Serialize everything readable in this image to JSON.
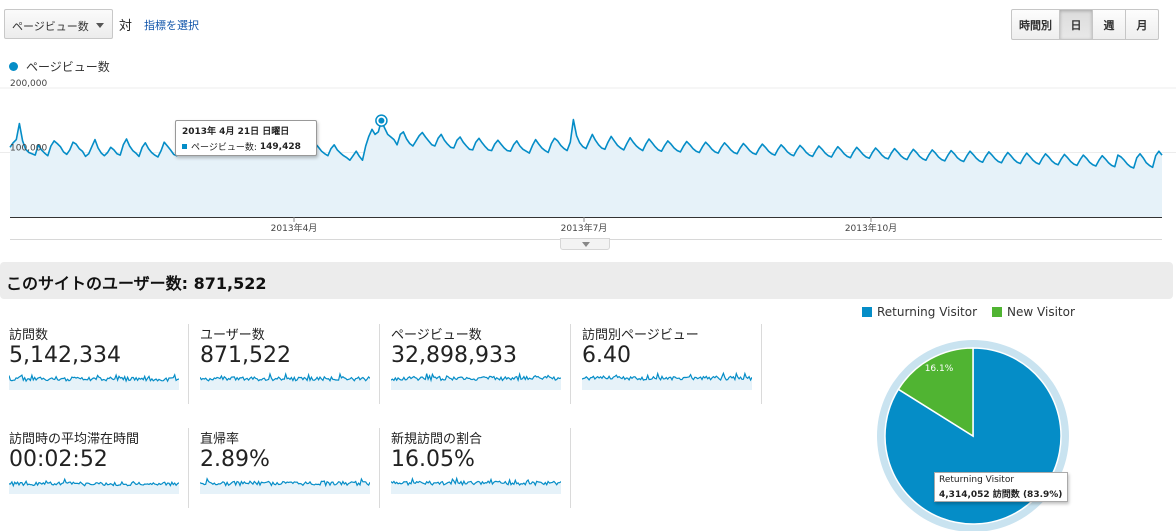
{
  "controls": {
    "metric_selector": "ページビュー数",
    "vs_label": "対",
    "select_metric_link": "指標を選択",
    "periods": [
      {
        "label": "時間別",
        "active": false
      },
      {
        "label": "日",
        "active": true
      },
      {
        "label": "週",
        "active": false
      },
      {
        "label": "月",
        "active": false
      }
    ]
  },
  "chart_legend": "ページビュー数",
  "chart_data": {
    "type": "area",
    "series": [
      {
        "name": "ページビュー数",
        "color": "#058dc7",
        "values": [
          108000,
          115000,
          120000,
          145000,
          118000,
          105000,
          100000,
          98000,
          96000,
          112000,
          104000,
          99000,
          95000,
          110000,
          118000,
          114000,
          109000,
          101000,
          97000,
          104000,
          116000,
          113000,
          106000,
          102000,
          94000,
          98000,
          109000,
          120000,
          107000,
          99000,
          95000,
          100000,
          108000,
          104000,
          98000,
          96000,
          112000,
          121000,
          110000,
          103000,
          99000,
          94000,
          108000,
          115000,
          106000,
          100000,
          96000,
          93000,
          103000,
          116000,
          110000,
          104000,
          97000,
          95000,
          109000,
          114000,
          106000,
          101000,
          96000,
          98000,
          118000,
          124000,
          112000,
          106000,
          101000,
          97000,
          108000,
          117000,
          112000,
          105000,
          99000,
          98000,
          112000,
          130000,
          118000,
          109000,
          104000,
          100000,
          112000,
          123000,
          114000,
          106000,
          102000,
          99000,
          110000,
          118000,
          113000,
          106000,
          101000,
          96000,
          108000,
          116000,
          110000,
          103000,
          99000,
          97000,
          105000,
          114000,
          108000,
          102000,
          98000,
          95000,
          106000,
          112000,
          104000,
          99000,
          95000,
          92000,
          88000,
          95000,
          102000,
          94000,
          88000,
          110000,
          125000,
          136000,
          128000,
          132000,
          149428,
          138000,
          128000,
          124000,
          120000,
          112000,
          128000,
          132000,
          121000,
          114000,
          110000,
          118000,
          126000,
          131000,
          124000,
          118000,
          112000,
          110000,
          122000,
          128000,
          119000,
          113000,
          108000,
          107000,
          119000,
          124000,
          116000,
          110000,
          105000,
          104000,
          116000,
          122000,
          115000,
          109000,
          104000,
          103000,
          113000,
          119000,
          113000,
          107000,
          103000,
          102000,
          112000,
          118000,
          110000,
          105000,
          102000,
          99000,
          111000,
          120000,
          113000,
          107000,
          103000,
          100000,
          114000,
          122000,
          118000,
          111000,
          106000,
          103000,
          116000,
          151000,
          126000,
          115000,
          109000,
          106000,
          117000,
          128000,
          119000,
          112000,
          107000,
          105000,
          116000,
          125000,
          118000,
          111000,
          107000,
          104000,
          114000,
          123000,
          116000,
          110000,
          106000,
          103000,
          113000,
          121000,
          115000,
          109000,
          104000,
          102000,
          111000,
          118000,
          113000,
          107000,
          103000,
          101000,
          110000,
          117000,
          112000,
          106000,
          102000,
          100000,
          109000,
          116000,
          111000,
          105000,
          101000,
          99000,
          108000,
          115000,
          110000,
          104000,
          100000,
          98000,
          107000,
          114000,
          109000,
          103000,
          99000,
          97000,
          106000,
          113000,
          108000,
          102000,
          98000,
          96000,
          105000,
          112000,
          107000,
          101000,
          97000,
          95000,
          104000,
          111000,
          106000,
          100000,
          96000,
          94000,
          103000,
          110000,
          105000,
          99000,
          95000,
          93000,
          102000,
          109000,
          104000,
          98000,
          94000,
          92000,
          101000,
          108000,
          103000,
          97000,
          93000,
          91000,
          100000,
          107000,
          102000,
          96000,
          92000,
          90000,
          99000,
          106000,
          101000,
          95000,
          91000,
          89000,
          98000,
          105000,
          100000,
          94000,
          90000,
          88000,
          97000,
          104000,
          99000,
          93000,
          89000,
          87000,
          96000,
          103000,
          98000,
          92000,
          88000,
          86000,
          95000,
          102000,
          97000,
          91000,
          87000,
          85000,
          94000,
          101000,
          96000,
          90000,
          86000,
          84000,
          93000,
          100000,
          95000,
          89000,
          85000,
          83000,
          92000,
          99000,
          94000,
          88000,
          84000,
          82000,
          91000,
          98000,
          93000,
          87000,
          83000,
          81000,
          90000,
          97000,
          92000,
          86000,
          82000,
          80000,
          89000,
          96000,
          91000,
          85000,
          81000,
          79000,
          88000,
          95000,
          90000,
          84000,
          80000,
          78000,
          96000,
          93000,
          88000,
          82000,
          78000,
          76000,
          92000,
          98000,
          92000,
          84000,
          80000,
          77000,
          95000,
          102000,
          96000
        ]
      }
    ],
    "x_labels": [
      "2013年4月",
      "2013年7月",
      "2013年10月"
    ],
    "y_ticks": [
      "200,000",
      "100,000"
    ],
    "ylim": [
      0,
      200000
    ],
    "grid": true,
    "tooltip": {
      "date": "2013年 4月 21日 日曜日",
      "series_label": "ページビュー数:",
      "value": "149,428"
    }
  },
  "summary_title": "このサイトのユーザー数: 871,522",
  "metrics": [
    {
      "label": "訪問数",
      "value": "5,142,334"
    },
    {
      "label": "ユーザー数",
      "value": "871,522"
    },
    {
      "label": "ページビュー数",
      "value": "32,898,933"
    },
    {
      "label": "訪問別ページビュー",
      "value": "6.40"
    },
    {
      "label": "訪問時の平均滞在時間",
      "value": "00:02:52"
    },
    {
      "label": "直帰率",
      "value": "2.89%"
    },
    {
      "label": "新規訪問の割合",
      "value": "16.05%"
    }
  ],
  "pie": {
    "legend": [
      {
        "label": "Returning Visitor",
        "color": "#058dc7"
      },
      {
        "label": "New Visitor",
        "color": "#50b432"
      }
    ],
    "slices": [
      {
        "label": "Returning Visitor",
        "value": 83.9,
        "color": "#058dc7"
      },
      {
        "label": "New Visitor",
        "value": 16.1,
        "color": "#50b432"
      }
    ],
    "slice_label": "16.1%",
    "tooltip": {
      "title": "Returning Visitor",
      "value": "4,314,052 訪問数 (83.9%)"
    }
  }
}
